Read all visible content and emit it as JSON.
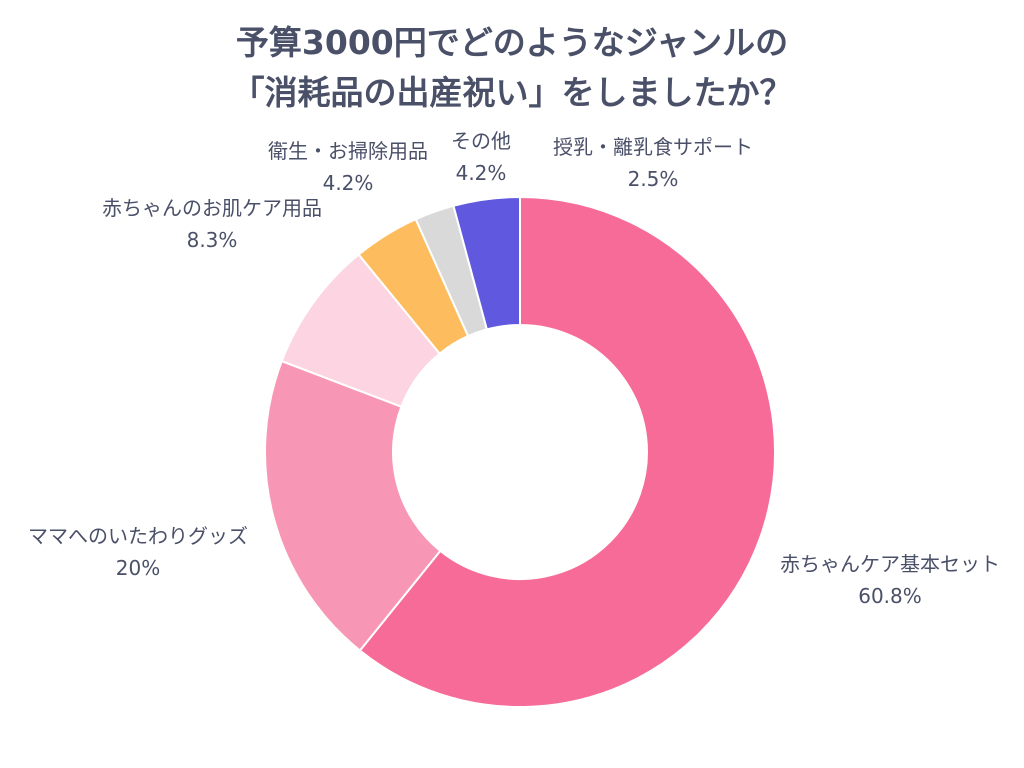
{
  "chart_data": {
    "type": "pie",
    "variant": "donut",
    "title_lines": [
      "予算3000円でどのようなジャンルの",
      "「消耗品の出産祝い」をしましたか？"
    ],
    "slices": [
      {
        "label": "赤ちゃんケア基本セット",
        "value": 60.8,
        "value_label": "60.8%",
        "color": "#f76b98"
      },
      {
        "label": "ママへのいたわりグッズ",
        "value": 20,
        "value_label": "20%",
        "color": "#f797b5"
      },
      {
        "label": "赤ちゃんのお肌ケア用品",
        "value": 8.3,
        "value_label": "8.3%",
        "color": "#fdd5e2"
      },
      {
        "label": "衛生・お掃除用品",
        "value": 4.2,
        "value_label": "4.2%",
        "color": "#fdbd5e"
      },
      {
        "label": "授乳・離乳食サポート",
        "value": 2.5,
        "value_label": "2.5%",
        "color": "#d9d9d9"
      },
      {
        "label": "その他",
        "value": 4.2,
        "value_label": "4.2%",
        "color": "#6059e0"
      }
    ],
    "legend": "none"
  }
}
